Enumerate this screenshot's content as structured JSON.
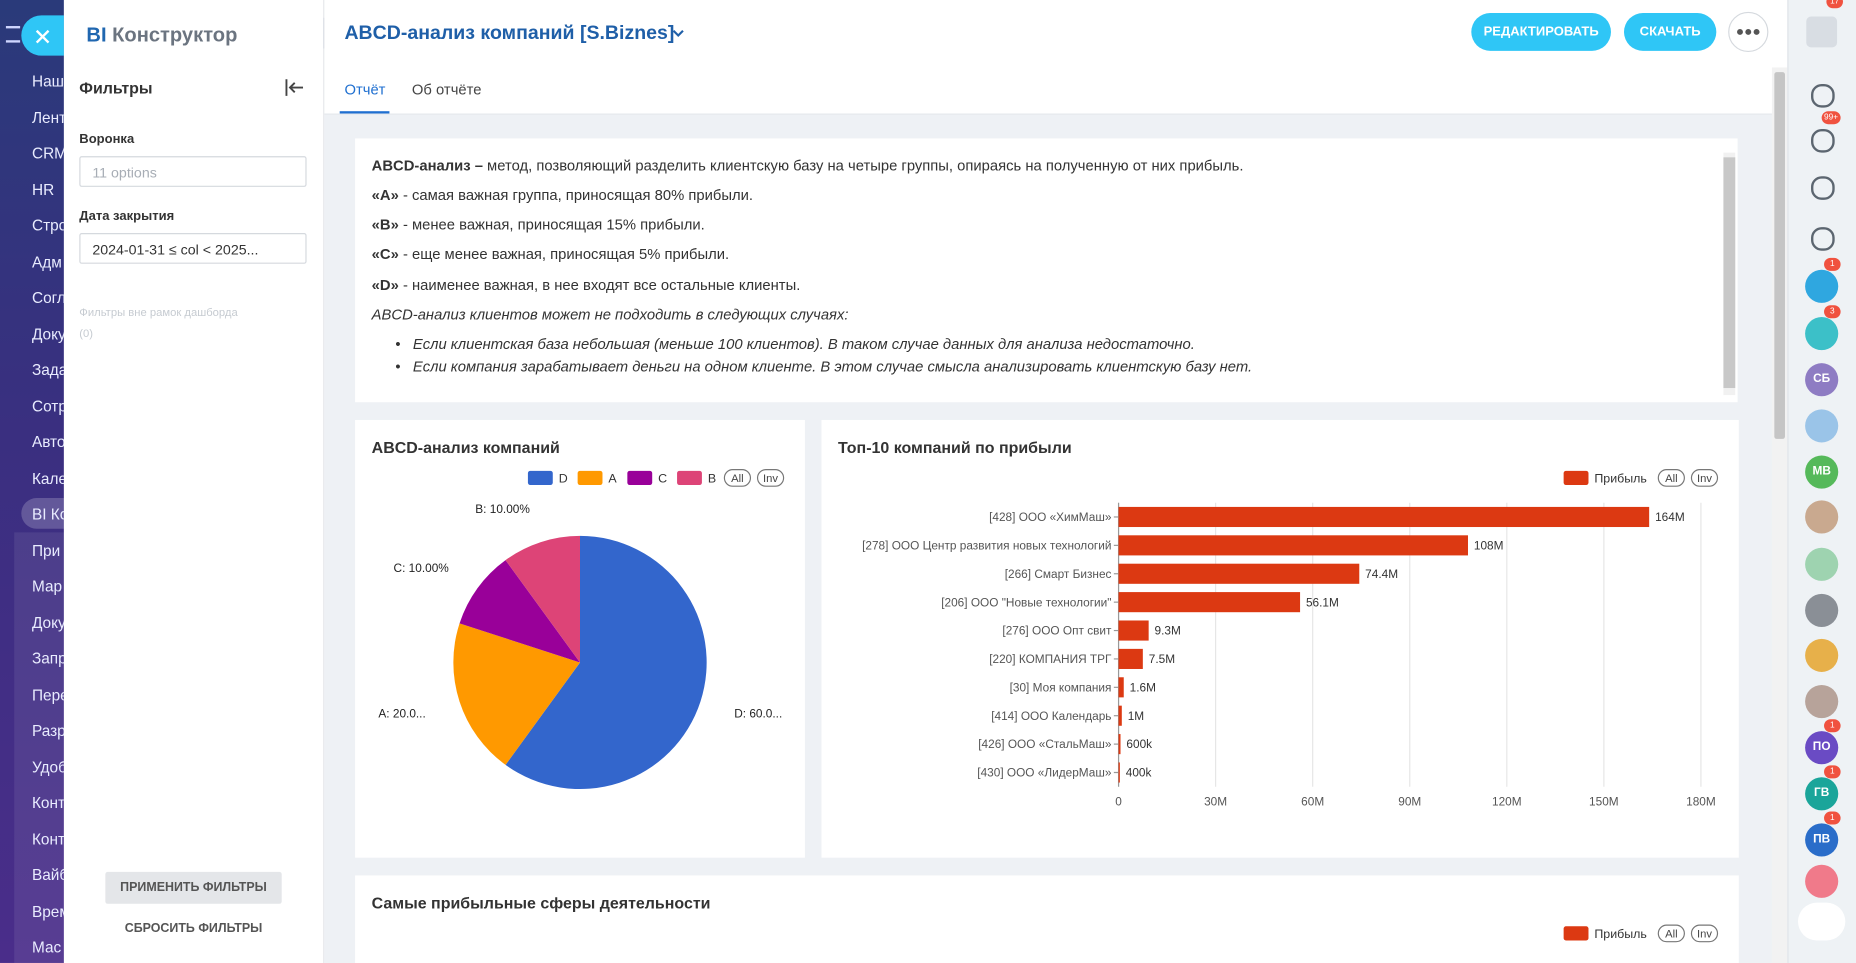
{
  "nav": {
    "items": [
      "Наш",
      "Лент",
      "CRM",
      "HR",
      "Стро",
      "Адм",
      "Согл",
      "Доку",
      "Зада",
      "Сотр",
      "Авто",
      "Кале",
      "BI Ко",
      "При",
      "Мар",
      "Доку",
      "Запр",
      "Пере",
      "Разр",
      "Удоб",
      "Конт",
      "Конт",
      "Вайб",
      "Врем",
      "Мас"
    ]
  },
  "header": {
    "logo_bi": "BI",
    "logo": "Конструктор",
    "title": "ABCD-анализ компаний [S.Biznes]",
    "edit": "РЕДАКТИРОВАТЬ",
    "download": "СКАЧАТЬ"
  },
  "filters": {
    "title": "Фильтры",
    "funnel_label": "Воронка",
    "funnel_value": "11 options",
    "date_label": "Дата закрытия",
    "date_value": "2024-01-31 ≤ col < 2025...",
    "outside": "Фильтры вне рамок дашборда",
    "outside_count": "(0)",
    "apply": "ПРИМЕНИТЬ ФИЛЬТРЫ",
    "reset": "СБРОСИТЬ ФИЛЬТРЫ"
  },
  "tabs": [
    "Отчёт",
    "Об отчёте"
  ],
  "description": {
    "intro": {
      "term": "ABCD-анализ –",
      "text": "метод, позволяющий разделить клиентскую базу на четыре группы, опираясь на полученную от них прибыль."
    },
    "groups": [
      {
        "term": "«A»",
        "text": "- самая важная группа, приносящая 80% прибыли."
      },
      {
        "term": "«B»",
        "text": "- менее важная, приносящая 15% прибыли."
      },
      {
        "term": "«C»",
        "text": "- еще менее важная, приносящая 5% прибыли."
      },
      {
        "term": "«D»",
        "text": "- наименее важная, в нее входят все остальные клиенты."
      }
    ],
    "note": "ABCD-анализ клиентов может не подходить в следующих случаях:",
    "bullets": [
      "Если клиентская база небольшая (меньше 100 клиентов). В таком случае данных для анализа недостаточно.",
      "Если компания зарабатывает деньги на одном клиенте. В этом случае смысла анализировать клиентскую базу нет."
    ]
  },
  "chart_data": [
    {
      "type": "pie",
      "title": "ABCD-анализ компаний",
      "categories": [
        "D",
        "A",
        "C",
        "B"
      ],
      "values": [
        60,
        20,
        10,
        10
      ],
      "value_labels": [
        "D: 60.0...",
        "A: 20.0...",
        "C: 10.00%",
        "B: 10.00%"
      ],
      "colors": [
        "#3366cc",
        "#ff9900",
        "#990099",
        "#dd4477"
      ],
      "buttons": [
        "All",
        "Inv"
      ]
    },
    {
      "type": "bar",
      "orientation": "horizontal",
      "title": "Топ-10 компаний по прибыли",
      "categories": [
        "[428] ООО «ХимМаш»",
        "[278] ООО Центр развития новых технологий",
        "[266] Смарт Бизнес",
        "[206] ООО \"Новые технологии\"",
        "[276] ООО Опт свит",
        "[220] КОМПАНИЯ ТРГ",
        "[30] Моя компания",
        "[414] ООО Календарь",
        "[426] ООО «СтальМаш»",
        "[430] ООО «ЛидерМаш»"
      ],
      "series": [
        {
          "name": "Прибыль",
          "color": "#dc3912",
          "values": [
            164000000,
            108000000,
            74400000,
            56100000,
            9300000,
            7500000,
            1600000,
            1000000,
            600000,
            400000
          ],
          "value_labels": [
            "164M",
            "108M",
            "74.4M",
            "56.1M",
            "9.3M",
            "7.5M",
            "1.6M",
            "1M",
            "600k",
            "400k"
          ]
        }
      ],
      "xlim": [
        0,
        180000000
      ],
      "xticks": [
        0,
        {
          "value": 30000000,
          "label": "30M"
        },
        {
          "value": 60000000,
          "label": "60M"
        },
        {
          "value": 90000000,
          "label": "90M"
        },
        {
          "value": 120000000,
          "label": "120M"
        },
        {
          "value": 150000000,
          "label": "150M"
        },
        {
          "value": 180000000,
          "label": "180M"
        }
      ],
      "grid": true,
      "buttons": [
        "All",
        "Inv"
      ]
    },
    {
      "type": "bar",
      "title": "Самые прибыльные сферы деятельности",
      "series": [
        {
          "name": "Прибыль",
          "color": "#dc3912"
        }
      ],
      "buttons": [
        "All",
        "Inv"
      ]
    }
  ],
  "rail": {
    "help_badge": "17",
    "bell_badge": "99+",
    "avatars": [
      {
        "label": "СБ",
        "color": "#8e7cc3"
      },
      {
        "label": "МВ",
        "color": "#55b95a"
      },
      {
        "label": "ПО",
        "color": "#6a4bc4"
      },
      {
        "label": "ГВ",
        "color": "#1aa59a"
      },
      {
        "label": "ПВ",
        "color": "#2a6dc9"
      }
    ],
    "badges": [
      "1",
      "3",
      "1",
      "1",
      "1"
    ]
  }
}
